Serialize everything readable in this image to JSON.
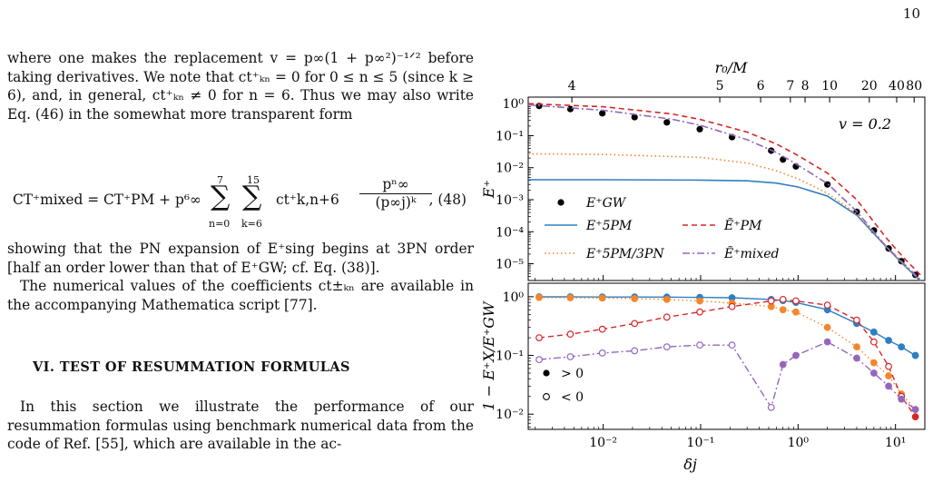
{
  "page_number": "10",
  "text": {
    "p1": "where one makes the replacement v = p∞(1 + p∞²)⁻¹ᐟ² before taking derivatives. We note that ct⁺ₖₙ = 0 for 0 ≤ n ≤ 5 (since k ≥ 6), and, in general, ct⁺ₖₙ ≠ 0 for n = 6. Thus we may also write Eq. (46) in the somewhat more transparent form",
    "eq_lhs": "CT⁺mixed = CT⁺PM + p⁶∞",
    "eq_sum1_top": "7",
    "eq_sum1_bot": "n=0",
    "eq_sum2_top": "15",
    "eq_sum2_bot": "k=6",
    "eq_term": "ct⁺k,n+6",
    "eq_num": "pⁿ∞",
    "eq_den": "(p∞j)ᵏ",
    "eq_number": ",   (48)",
    "p2": "showing that the PN expansion of E⁺sing begins at 3PN order [half an order lower than that of E⁺GW; cf. Eq. (38)].",
    "p3": "The numerical values of the coefficients ct±ₖₙ are available in the accompanying Mathematica script [77].",
    "section_heading": "VI.   TEST OF RESUMMATION FORMULAS",
    "p4": "In this section we illustrate the performance of our resummation formulas using benchmark numerical data from the code of Ref. [55], which are available in the ac-"
  },
  "chart_data": [
    {
      "type": "line",
      "panel": "top",
      "xlabel": "δj",
      "ylabel": "E⁺",
      "top_xlabel": "r₀/M",
      "top_ticks": [
        "4",
        "5",
        "6",
        "7",
        "8",
        "10",
        "20",
        "40",
        "80"
      ],
      "xscale": "log",
      "yscale": "log",
      "xlim": [
        0.0017,
        20
      ],
      "ylim": [
        3e-06,
        1.6
      ],
      "yticks": [
        "10⁻⁵",
        "10⁻⁴",
        "10⁻³",
        "10⁻²",
        "10⁻¹",
        "10⁰"
      ],
      "annotation": "v = 0.2",
      "legend": "lower-left",
      "series": [
        {
          "name": "E⁺GW",
          "style": "dots",
          "color": "#000000",
          "x": [
            0.0022,
            0.0046,
            0.0098,
            0.021,
            0.045,
            0.098,
            0.21,
            0.53,
            0.7,
            0.95,
            2.0,
            4.0,
            6.0,
            8.5,
            11.5,
            16.0
          ],
          "y": [
            0.85,
            0.68,
            0.5,
            0.38,
            0.26,
            0.16,
            0.09,
            0.034,
            0.018,
            0.011,
            0.003,
            0.00042,
            0.00011,
            3e-05,
            1.2e-05,
            4.5e-06
          ]
        },
        {
          "name": "E⁺5PM",
          "style": "solid",
          "color": "#2f7fc1",
          "x": [
            0.0017,
            0.01,
            0.1,
            0.3,
            0.6,
            1.0,
            2.0,
            4.0,
            8.0,
            12.0,
            18.0
          ],
          "y": [
            0.0042,
            0.0042,
            0.0041,
            0.0039,
            0.0033,
            0.0025,
            0.0013,
            0.00033,
            3.4e-05,
            9.5e-06,
            2.9e-06
          ]
        },
        {
          "name": "E⁺5PM/3PN",
          "style": "dotted",
          "color": "#f5862b",
          "x": [
            0.0017,
            0.01,
            0.1,
            0.3,
            0.6,
            1.0,
            2.0,
            4.0,
            8.0,
            12.0,
            18.0
          ],
          "y": [
            0.027,
            0.026,
            0.021,
            0.014,
            0.008,
            0.0045,
            0.0016,
            0.00036,
            3.5e-05,
            9.7e-06,
            3e-06
          ]
        },
        {
          "name": "Ẽ⁺PM",
          "style": "dashed",
          "color": "#d62728",
          "x": [
            0.0017,
            0.01,
            0.05,
            0.1,
            0.3,
            0.6,
            1.0,
            2.0,
            4.0,
            8.0,
            12.0,
            18.0
          ],
          "y": [
            1.0,
            0.8,
            0.48,
            0.32,
            0.13,
            0.055,
            0.024,
            0.0068,
            0.001,
            6.5e-05,
            1.6e-05,
            4.5e-06
          ]
        },
        {
          "name": "Ẽ⁺mixed",
          "style": "dashdot",
          "color": "#9467bd",
          "x": [
            0.0017,
            0.01,
            0.05,
            0.1,
            0.3,
            0.6,
            1.0,
            2.0,
            4.0,
            8.0,
            12.0,
            18.0
          ],
          "y": [
            0.92,
            0.62,
            0.33,
            0.21,
            0.075,
            0.03,
            0.012,
            0.0032,
            0.00043,
            3.5e-05,
            1.05e-05,
            3.2e-06
          ]
        }
      ]
    },
    {
      "type": "line",
      "panel": "bottom",
      "xlabel": "δj",
      "ylabel": "1 − E⁺X/E⁺GW",
      "xscale": "log",
      "yscale": "log",
      "xlim": [
        0.0017,
        20
      ],
      "ylim": [
        0.0055,
        1.7
      ],
      "xticks": [
        "10⁻²",
        "10⁻¹",
        "10⁰",
        "10¹"
      ],
      "yticks": [
        "10⁻²",
        "10⁻¹",
        "10⁰"
      ],
      "legend_markers": [
        "> 0",
        "< 0"
      ],
      "series": [
        {
          "name": "5PM",
          "color": "#2f7fc1",
          "x": [
            0.0022,
            0.0046,
            0.0098,
            0.021,
            0.045,
            0.098,
            0.21,
            0.53,
            0.7,
            0.95,
            2.0,
            4.0,
            6.0,
            8.5,
            11.5,
            16.0
          ],
          "y": [
            0.995,
            0.995,
            0.99,
            0.99,
            0.985,
            0.975,
            0.96,
            0.9,
            0.86,
            0.8,
            0.6,
            0.35,
            0.25,
            0.18,
            0.14,
            0.1
          ],
          "sign": [
            1,
            1,
            1,
            1,
            1,
            1,
            1,
            1,
            1,
            1,
            1,
            1,
            1,
            1,
            1,
            1
          ]
        },
        {
          "name": "5PM/3PN",
          "color": "#f5862b",
          "x": [
            0.0022,
            0.0046,
            0.0098,
            0.021,
            0.045,
            0.098,
            0.21,
            0.53,
            0.7,
            0.95,
            2.0,
            4.0,
            6.0,
            8.5,
            11.5,
            16.0
          ],
          "y": [
            0.97,
            0.96,
            0.95,
            0.93,
            0.9,
            0.85,
            0.78,
            0.68,
            0.6,
            0.55,
            0.3,
            0.14,
            0.075,
            0.045,
            0.022,
            0.012
          ],
          "sign": [
            1,
            1,
            1,
            1,
            1,
            1,
            1,
            1,
            1,
            1,
            1,
            1,
            1,
            1,
            1,
            1
          ]
        },
        {
          "name": "PM",
          "color": "#d62728",
          "x": [
            0.0022,
            0.0046,
            0.0098,
            0.021,
            0.045,
            0.098,
            0.21,
            0.53,
            0.7,
            0.95,
            2.0,
            4.0,
            6.0,
            8.5,
            11.5,
            16.0
          ],
          "y": [
            0.2,
            0.23,
            0.28,
            0.35,
            0.45,
            0.55,
            0.68,
            0.85,
            0.9,
            0.85,
            0.72,
            0.4,
            0.17,
            0.065,
            0.02,
            0.009
          ],
          "sign": [
            -1,
            -1,
            -1,
            -1,
            -1,
            -1,
            -1,
            -1,
            -1,
            -1,
            -1,
            -1,
            -1,
            -1,
            -1,
            1
          ]
        },
        {
          "name": "mixed",
          "color": "#9467bd",
          "x": [
            0.0022,
            0.0046,
            0.0098,
            0.021,
            0.045,
            0.098,
            0.21,
            0.53,
            0.7,
            0.95,
            2.0,
            4.0,
            6.0,
            8.5,
            11.5,
            16.0
          ],
          "y": [
            0.085,
            0.095,
            0.11,
            0.12,
            0.14,
            0.15,
            0.15,
            0.013,
            0.07,
            0.1,
            0.17,
            0.09,
            0.05,
            0.03,
            0.018,
            0.012
          ],
          "sign": [
            -1,
            -1,
            -1,
            -1,
            -1,
            -1,
            -1,
            -1,
            1,
            1,
            1,
            1,
            1,
            1,
            1,
            1
          ]
        }
      ]
    }
  ]
}
